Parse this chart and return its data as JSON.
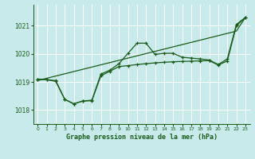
{
  "title": "Graphe pression niveau de la mer (hPa)",
  "background_color": "#c8eaea",
  "grid_color": "#ffffff",
  "line_color": "#1a5c1a",
  "xlim": [
    -0.5,
    23.5
  ],
  "ylim": [
    1017.5,
    1021.75
  ],
  "yticks": [
    1018,
    1019,
    1020,
    1021
  ],
  "xticks": [
    0,
    1,
    2,
    3,
    4,
    5,
    6,
    7,
    8,
    9,
    10,
    11,
    12,
    13,
    14,
    15,
    16,
    17,
    18,
    19,
    20,
    21,
    22,
    23
  ],
  "s_straight": [
    1019.05,
    1019.13,
    1019.21,
    1019.29,
    1019.37,
    1019.45,
    1019.53,
    1019.61,
    1019.69,
    1019.77,
    1019.85,
    1019.93,
    1020.01,
    1020.09,
    1020.17,
    1020.25,
    1020.33,
    1020.41,
    1020.49,
    1020.57,
    1020.65,
    1020.73,
    1020.81,
    1021.3
  ],
  "s_mid": [
    1019.1,
    1019.08,
    1019.05,
    1018.38,
    1018.22,
    1018.32,
    1018.33,
    1019.22,
    1019.38,
    1019.55,
    1019.58,
    1019.62,
    1019.65,
    1019.68,
    1019.7,
    1019.72,
    1019.73,
    1019.74,
    1019.75,
    1019.76,
    1019.6,
    1019.75,
    1021.0,
    1021.3
  ],
  "s_top": [
    1019.1,
    1019.08,
    1019.02,
    1018.38,
    1018.22,
    1018.32,
    1018.35,
    1019.28,
    1019.42,
    1019.65,
    1020.02,
    1020.38,
    1020.38,
    1019.98,
    1020.02,
    1020.02,
    1019.88,
    1019.85,
    1019.82,
    1019.78,
    1019.62,
    1019.82,
    1021.05,
    1021.3
  ]
}
